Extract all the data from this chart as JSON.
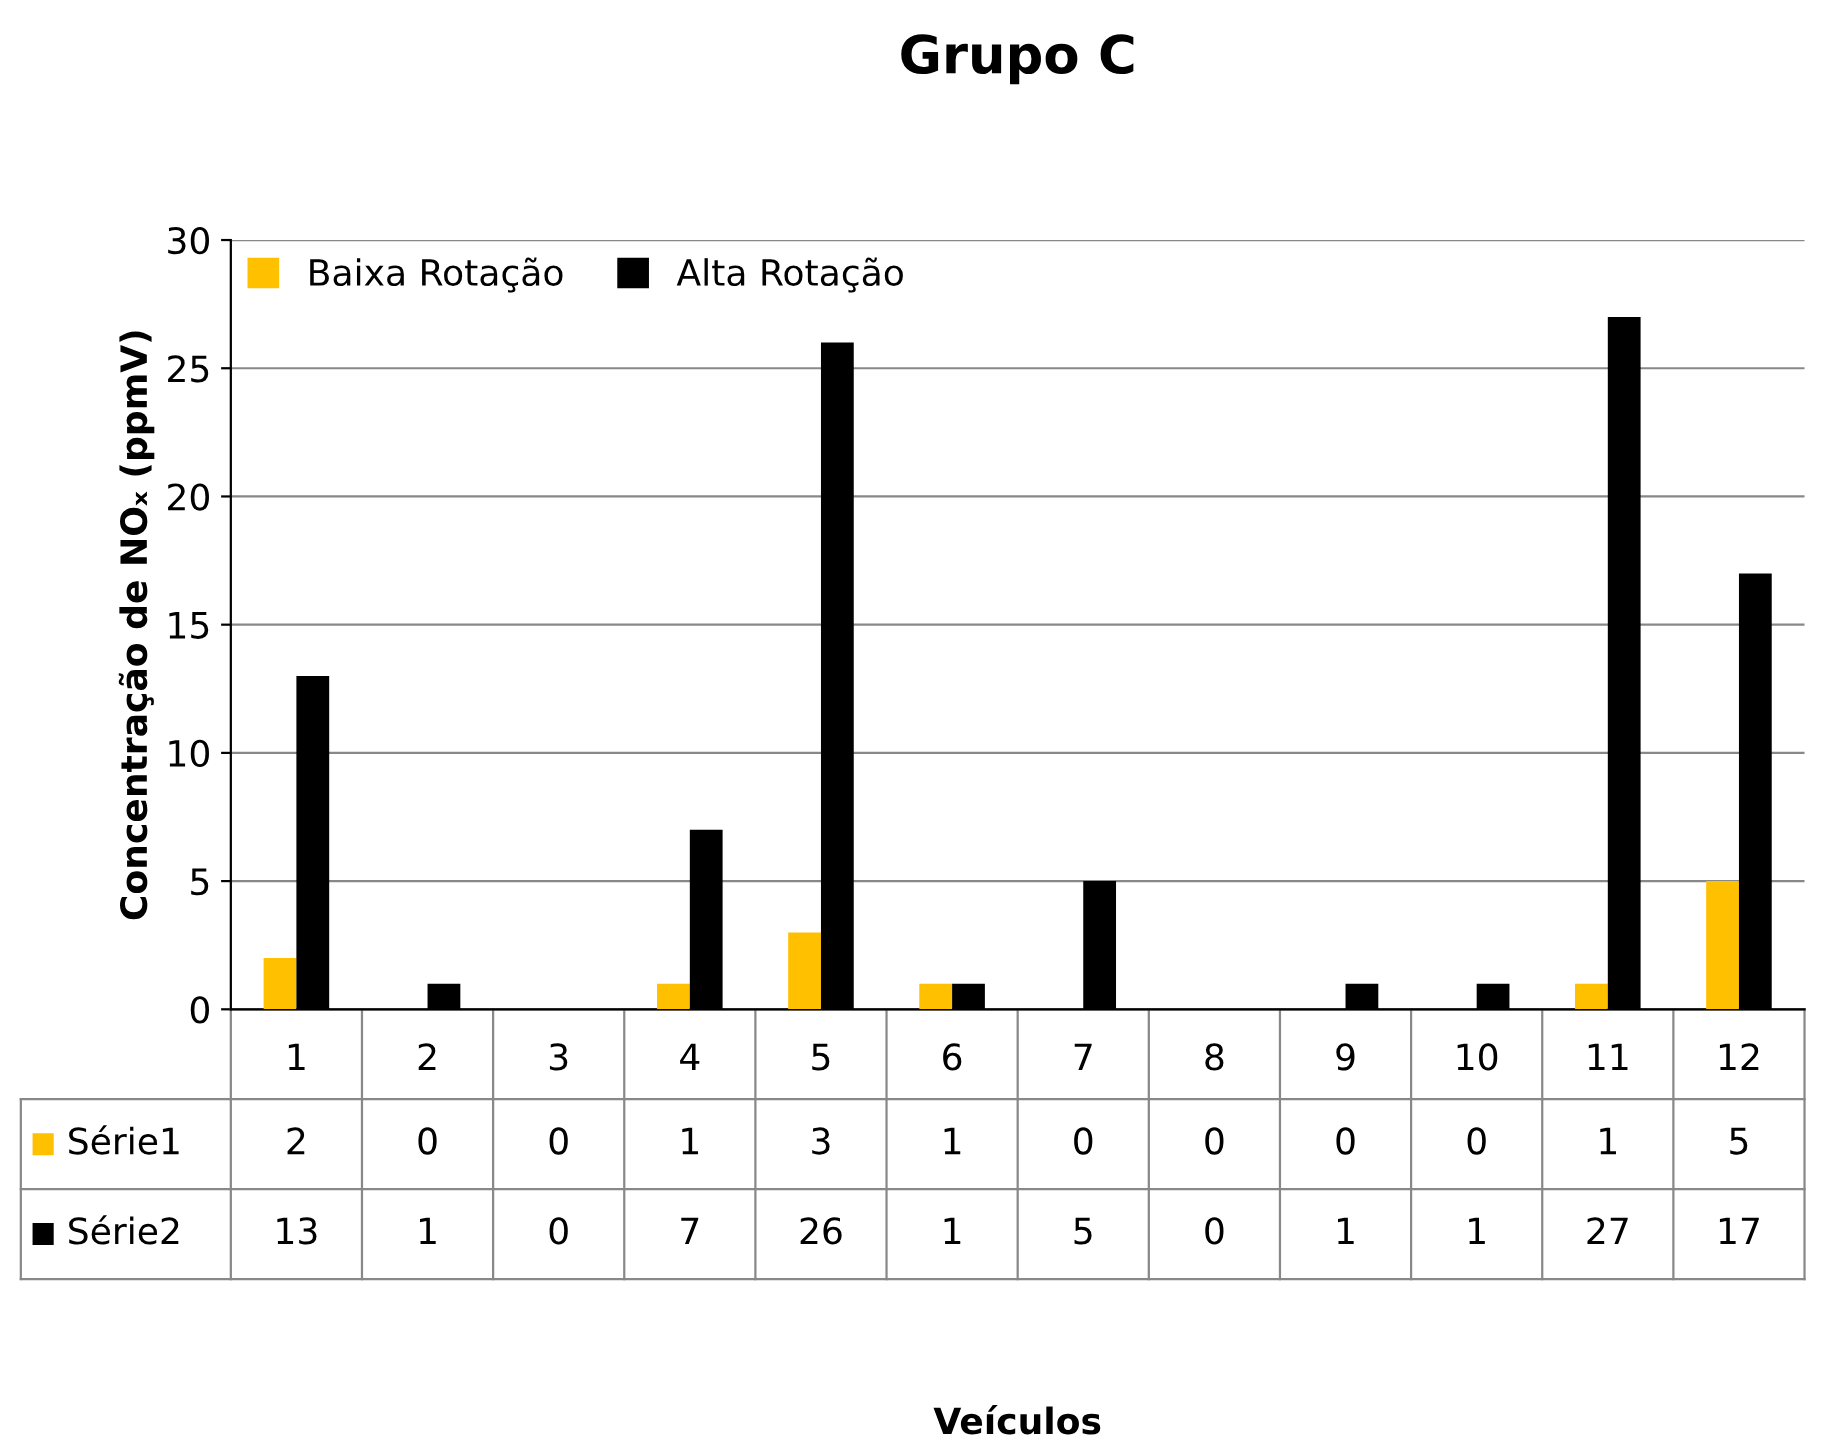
{
  "chart_data": {
    "type": "bar",
    "title": "Grupo C",
    "ylabel": "Concentração de NOₓ (ppmV)",
    "categories": [
      "1",
      "2",
      "3",
      "4",
      "5",
      "6",
      "7",
      "8",
      "9",
      "10",
      "11",
      "12"
    ],
    "series": [
      {
        "name": "Baixa Rotação",
        "color": "#ffc000",
        "values": [
          2,
          0,
          0,
          1,
          3,
          1,
          0,
          0,
          0,
          0,
          1,
          5
        ]
      },
      {
        "name": "Alta Rotação",
        "color": "#000000",
        "values": [
          13,
          1,
          0,
          7,
          26,
          1,
          5,
          0,
          1,
          1,
          27,
          17
        ]
      }
    ],
    "annotations": [
      "Série1",
      "Série2",
      "Veículos"
    ],
    "ylim": [
      0,
      30
    ],
    "yticks": [
      0,
      5,
      10,
      15,
      20,
      25,
      30
    ],
    "grid": "y",
    "legend": "top left",
    "data_labels": true
  }
}
